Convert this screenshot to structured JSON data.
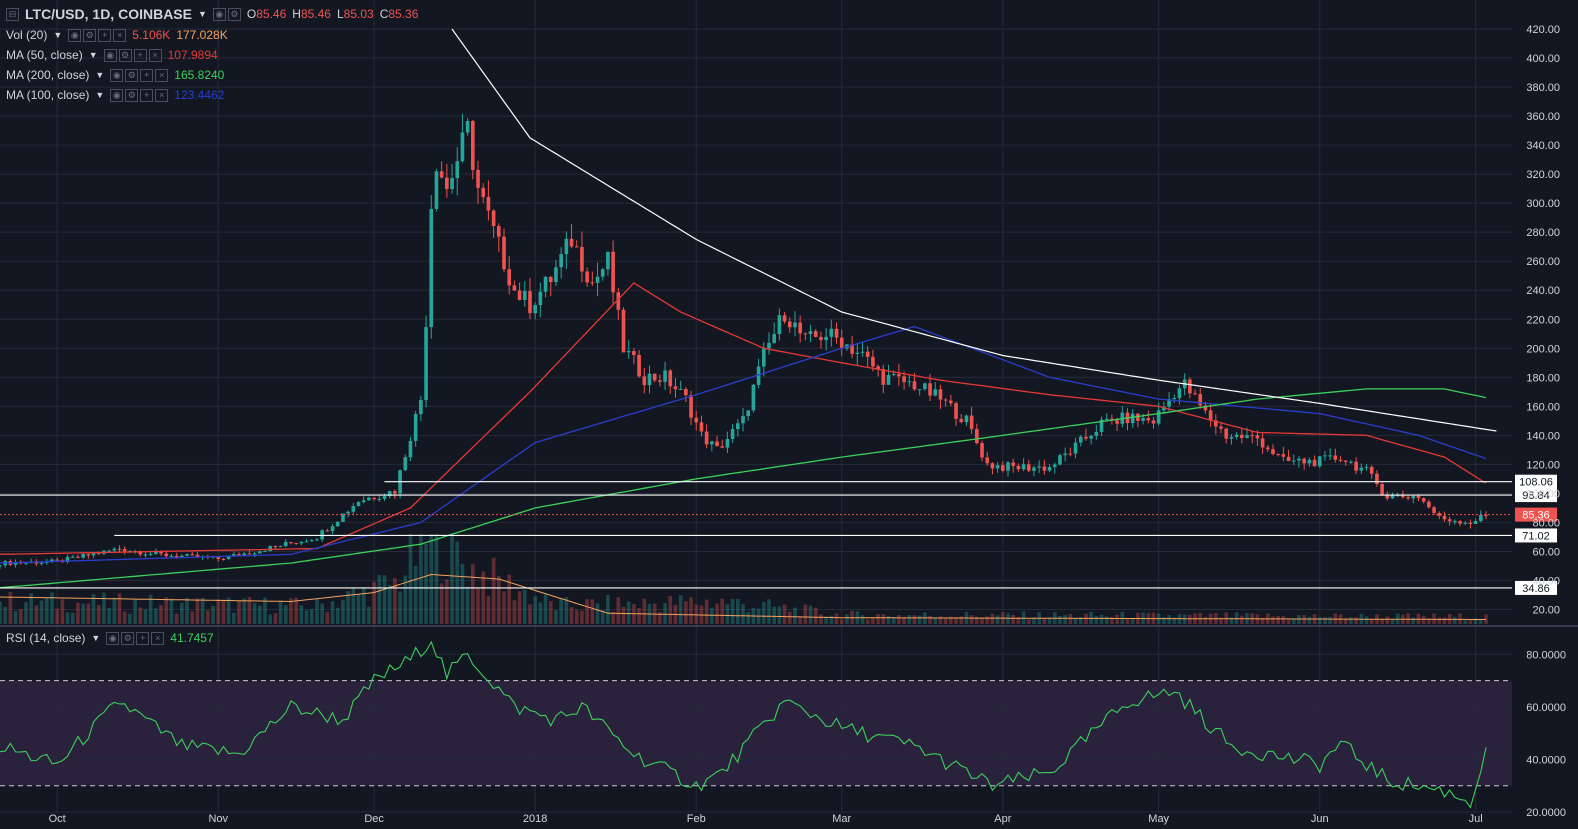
{
  "header": {
    "symbol": "LTC/USD, 1D, COINBASE",
    "o_label": "O",
    "o": "85.46",
    "h_label": "H",
    "h": "85.46",
    "l_label": "L",
    "l": "85.03",
    "c_label": "C",
    "c": "85.36"
  },
  "indicators": [
    {
      "name": "Vol (20)",
      "values": [
        "5.106K",
        "177.028K"
      ],
      "colors": [
        "#ef5350",
        "#f5a25d"
      ]
    },
    {
      "name": "MA (50, close)",
      "values": [
        "107.9894"
      ],
      "colors": [
        "#e53935"
      ]
    },
    {
      "name": "MA (200, close)",
      "values": [
        "165.8240"
      ],
      "colors": [
        "#3cd05a"
      ]
    },
    {
      "name": "MA (100, close)",
      "values": [
        "123.4462"
      ],
      "colors": [
        "#2a3ecc"
      ]
    }
  ],
  "rsi_legend": {
    "name": "RSI (14, close)",
    "value": "41.7457"
  },
  "colors": {
    "background": "#131722",
    "grid": "#242a38",
    "text": "#d1d4dc",
    "up": "#26a69a",
    "down": "#ef5350",
    "ma50": "#e53935",
    "ma100": "#2a3ecc",
    "ma200": "#3cd05a",
    "vol_ma": "#f5a25d",
    "rsi": "#3cd05a",
    "rsi_band": "#2e2340",
    "trendline": "#ffffff"
  },
  "chart_data": [
    {
      "type": "candlestick",
      "symbol": "LTC/USD",
      "interval": "1D",
      "exchange": "COINBASE",
      "x_range": [
        "2017-09-20",
        "2018-07-08"
      ],
      "ylim": [
        10,
        440
      ],
      "y_ticks": [
        "420.00",
        "400.00",
        "380.00",
        "360.00",
        "340.00",
        "320.00",
        "300.00",
        "280.00",
        "260.00",
        "240.00",
        "220.00",
        "200.00",
        "180.00",
        "160.00",
        "140.00",
        "120.00",
        "100.00",
        "80.00",
        "60.00",
        "40.00",
        "20.00"
      ],
      "x_ticks": [
        {
          "date": "2017-10-01",
          "label": "Oct"
        },
        {
          "date": "2017-11-01",
          "label": "Nov"
        },
        {
          "date": "2017-12-01",
          "label": "Dec"
        },
        {
          "date": "2018-01-01",
          "label": "2018"
        },
        {
          "date": "2018-02-01",
          "label": "Feb"
        },
        {
          "date": "2018-03-01",
          "label": "Mar"
        },
        {
          "date": "2018-04-01",
          "label": "Apr"
        },
        {
          "date": "2018-05-01",
          "label": "May"
        },
        {
          "date": "2018-06-01",
          "label": "Jun"
        },
        {
          "date": "2018-07-01",
          "label": "Jul"
        }
      ],
      "close_anchors": [
        [
          "2017-09-20",
          52
        ],
        [
          "2017-10-01",
          53
        ],
        [
          "2017-10-13",
          62
        ],
        [
          "2017-10-20",
          58
        ],
        [
          "2017-11-01",
          55
        ],
        [
          "2017-11-08",
          60
        ],
        [
          "2017-11-20",
          70
        ],
        [
          "2017-11-28",
          95
        ],
        [
          "2017-12-05",
          102
        ],
        [
          "2017-12-08",
          140
        ],
        [
          "2017-12-10",
          165
        ],
        [
          "2017-12-11",
          220
        ],
        [
          "2017-12-12",
          300
        ],
        [
          "2017-12-13",
          330
        ],
        [
          "2017-12-15",
          310
        ],
        [
          "2017-12-19",
          350
        ],
        [
          "2017-12-21",
          310
        ],
        [
          "2017-12-24",
          280
        ],
        [
          "2017-12-28",
          240
        ],
        [
          "2017-12-31",
          230
        ],
        [
          "2018-01-04",
          248
        ],
        [
          "2018-01-08",
          275
        ],
        [
          "2018-01-12",
          245
        ],
        [
          "2018-01-15",
          260
        ],
        [
          "2018-01-18",
          200
        ],
        [
          "2018-01-22",
          180
        ],
        [
          "2018-01-26",
          180
        ],
        [
          "2018-01-30",
          165
        ],
        [
          "2018-02-02",
          140
        ],
        [
          "2018-02-05",
          130
        ],
        [
          "2018-02-10",
          150
        ],
        [
          "2018-02-14",
          195
        ],
        [
          "2018-02-18",
          225
        ],
        [
          "2018-02-22",
          205
        ],
        [
          "2018-02-26",
          210
        ],
        [
          "2018-03-01",
          205
        ],
        [
          "2018-03-05",
          195
        ],
        [
          "2018-03-09",
          180
        ],
        [
          "2018-03-15",
          175
        ],
        [
          "2018-03-20",
          165
        ],
        [
          "2018-03-25",
          150
        ],
        [
          "2018-03-29",
          120
        ],
        [
          "2018-04-02",
          118
        ],
        [
          "2018-04-10",
          118
        ],
        [
          "2018-04-15",
          132
        ],
        [
          "2018-04-20",
          148
        ],
        [
          "2018-04-25",
          152
        ],
        [
          "2018-04-30",
          150
        ],
        [
          "2018-05-04",
          170
        ],
        [
          "2018-05-06",
          175
        ],
        [
          "2018-05-10",
          155
        ],
        [
          "2018-05-14",
          140
        ],
        [
          "2018-05-20",
          138
        ],
        [
          "2018-05-25",
          122
        ],
        [
          "2018-06-01",
          122
        ],
        [
          "2018-06-05",
          125
        ],
        [
          "2018-06-10",
          115
        ],
        [
          "2018-06-14",
          98
        ],
        [
          "2018-06-20",
          98
        ],
        [
          "2018-06-24",
          83
        ],
        [
          "2018-06-30",
          80
        ],
        [
          "2018-07-03",
          85
        ]
      ],
      "moving_averages": [
        {
          "name": "MA 50",
          "anchors": [
            [
              "2017-09-20",
              58
            ],
            [
              "2017-11-20",
              62
            ],
            [
              "2017-12-08",
              90
            ],
            [
              "2017-12-31",
              170
            ],
            [
              "2018-01-20",
              245
            ],
            [
              "2018-01-29",
              225
            ],
            [
              "2018-02-14",
              200
            ],
            [
              "2018-03-01",
              190
            ],
            [
              "2018-03-20",
              178
            ],
            [
              "2018-04-10",
              168
            ],
            [
              "2018-05-01",
              160
            ],
            [
              "2018-05-20",
              142
            ],
            [
              "2018-06-10",
              140
            ],
            [
              "2018-06-25",
              125
            ],
            [
              "2018-07-03",
              107
            ]
          ]
        },
        {
          "name": "MA 100",
          "anchors": [
            [
              "2017-09-20",
              52
            ],
            [
              "2017-11-15",
              58
            ],
            [
              "2017-12-10",
              80
            ],
            [
              "2018-01-01",
              135
            ],
            [
              "2018-02-01",
              168
            ],
            [
              "2018-03-01",
              200
            ],
            [
              "2018-03-15",
              215
            ],
            [
              "2018-04-10",
              180
            ],
            [
              "2018-05-01",
              165
            ],
            [
              "2018-06-01",
              155
            ],
            [
              "2018-06-20",
              140
            ],
            [
              "2018-07-03",
              124
            ]
          ]
        },
        {
          "name": "MA 200",
          "anchors": [
            [
              "2017-09-20",
              35
            ],
            [
              "2017-11-15",
              52
            ],
            [
              "2017-12-10",
              65
            ],
            [
              "2018-01-01",
              90
            ],
            [
              "2018-02-01",
              110
            ],
            [
              "2018-03-01",
              125
            ],
            [
              "2018-04-01",
              140
            ],
            [
              "2018-05-01",
              155
            ],
            [
              "2018-05-20",
              165
            ],
            [
              "2018-06-10",
              172
            ],
            [
              "2018-06-25",
              172
            ],
            [
              "2018-07-03",
              166
            ]
          ]
        }
      ],
      "trendline": {
        "anchors": [
          [
            "2017-12-16",
            420
          ],
          [
            "2017-12-31",
            345
          ],
          [
            "2018-02-01",
            275
          ],
          [
            "2018-03-01",
            225
          ],
          [
            "2018-04-01",
            195
          ],
          [
            "2018-05-01",
            178
          ],
          [
            "2018-06-01",
            162
          ],
          [
            "2018-07-05",
            143
          ]
        ]
      },
      "horizontal_levels": [
        {
          "value": 108.06,
          "label": "108.06",
          "from": "2017-12-03"
        },
        {
          "value": 98.84,
          "label": "98.84",
          "from": "2017-09-20"
        },
        {
          "value": 71.02,
          "label": "71.02",
          "from": "2017-10-12"
        },
        {
          "value": 34.86,
          "label": "34.86",
          "from": "2017-09-20"
        }
      ],
      "last_price": {
        "value": 85.36,
        "label": "85.36"
      }
    },
    {
      "type": "bar",
      "name": "Vol (20)",
      "note": "volume overlay at the bottom of the price pane; relative heights only",
      "volume_anchors": [
        [
          "2017-09-20",
          0.25
        ],
        [
          "2017-11-20",
          0.2
        ],
        [
          "2017-12-05",
          0.45
        ],
        [
          "2017-12-12",
          1.0
        ],
        [
          "2017-12-20",
          0.6
        ],
        [
          "2018-01-05",
          0.2
        ],
        [
          "2018-02-06",
          0.25
        ],
        [
          "2018-03-01",
          0.1
        ],
        [
          "2018-07-03",
          0.08
        ]
      ],
      "vol_ma_anchors": [
        [
          "2017-09-20",
          0.3
        ],
        [
          "2017-11-15",
          0.25
        ],
        [
          "2017-12-01",
          0.35
        ],
        [
          "2017-12-12",
          0.55
        ],
        [
          "2017-12-25",
          0.5
        ],
        [
          "2018-01-05",
          0.3
        ],
        [
          "2018-01-15",
          0.12
        ],
        [
          "2018-03-01",
          0.07
        ],
        [
          "2018-07-03",
          0.05
        ]
      ]
    },
    {
      "type": "line",
      "name": "RSI (14, close)",
      "ylim": [
        20,
        90
      ],
      "y_ticks": [
        "80.0000",
        "60.0000",
        "40.0000",
        "20.0000"
      ],
      "bands": [
        30,
        70
      ],
      "anchors": [
        [
          "2017-09-20",
          45
        ],
        [
          "2017-10-01",
          38
        ],
        [
          "2017-10-13",
          62
        ],
        [
          "2017-10-25",
          45
        ],
        [
          "2017-11-05",
          42
        ],
        [
          "2017-11-15",
          60
        ],
        [
          "2017-11-25",
          55
        ],
        [
          "2017-12-01",
          70
        ],
        [
          "2017-12-08",
          78
        ],
        [
          "2017-12-12",
          86
        ],
        [
          "2017-12-15",
          72
        ],
        [
          "2017-12-19",
          80
        ],
        [
          "2017-12-28",
          60
        ],
        [
          "2018-01-05",
          55
        ],
        [
          "2018-01-10",
          60
        ],
        [
          "2018-01-20",
          42
        ],
        [
          "2018-02-01",
          30
        ],
        [
          "2018-02-06",
          35
        ],
        [
          "2018-02-18",
          62
        ],
        [
          "2018-03-01",
          52
        ],
        [
          "2018-03-15",
          45
        ],
        [
          "2018-03-30",
          30
        ],
        [
          "2018-04-10",
          35
        ],
        [
          "2018-04-25",
          62
        ],
        [
          "2018-05-04",
          66
        ],
        [
          "2018-05-15",
          45
        ],
        [
          "2018-06-01",
          38
        ],
        [
          "2018-06-05",
          46
        ],
        [
          "2018-06-14",
          32
        ],
        [
          "2018-06-25",
          28
        ],
        [
          "2018-06-30",
          24
        ],
        [
          "2018-07-03",
          42
        ]
      ],
      "last": 41.7457
    }
  ]
}
